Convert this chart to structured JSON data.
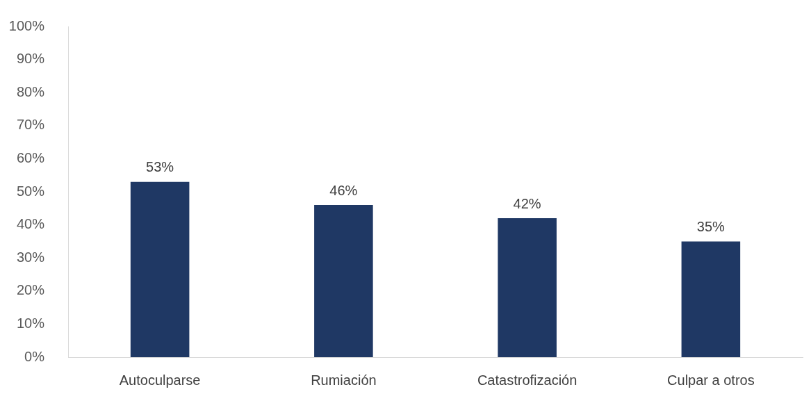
{
  "chart_data": {
    "type": "bar",
    "categories": [
      "Autoculparse",
      "Rumiación",
      "Catastrofización",
      "Culpar a otros"
    ],
    "values": [
      53,
      46,
      42,
      35
    ],
    "value_labels": [
      "53%",
      "46%",
      "42%",
      "35%"
    ],
    "color": "#1f3864",
    "ylim": [
      0,
      100
    ],
    "yticks": [
      {
        "value": 0,
        "label": "0%"
      },
      {
        "value": 10,
        "label": "10%"
      },
      {
        "value": 20,
        "label": "20%"
      },
      {
        "value": 30,
        "label": "30%"
      },
      {
        "value": 40,
        "label": "40%"
      },
      {
        "value": 50,
        "label": "50%"
      },
      {
        "value": 60,
        "label": "60%"
      },
      {
        "value": 70,
        "label": "70%"
      },
      {
        "value": 80,
        "label": "80%"
      },
      {
        "value": 90,
        "label": "90%"
      },
      {
        "value": 100,
        "label": "100%"
      }
    ]
  }
}
